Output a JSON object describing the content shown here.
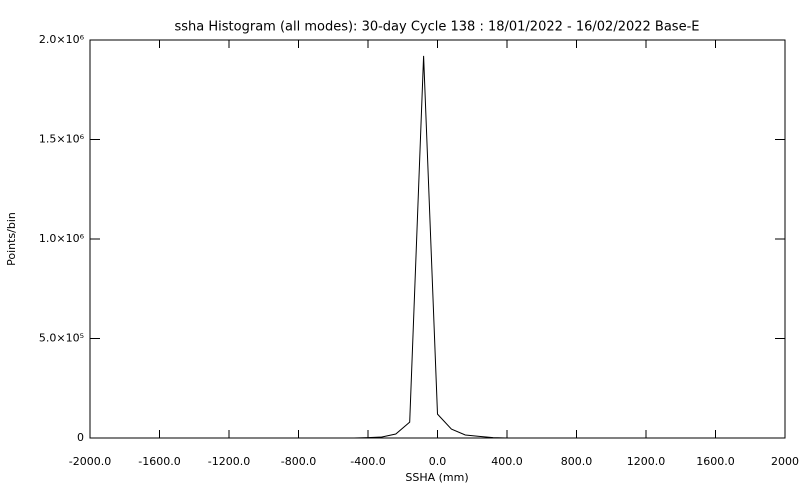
{
  "chart_data": {
    "type": "line",
    "title": "ssha Histogram (all modes): 30-day Cycle 138 : 18/01/2022 - 16/02/2022 Base-E",
    "xlabel": "SSHA (mm)",
    "ylabel": "Points/bin",
    "x": [
      -480,
      -400,
      -320,
      -240,
      -160,
      -80,
      0,
      80,
      160,
      240,
      320,
      400
    ],
    "values": [
      0,
      2000,
      5000,
      20000,
      80000,
      1920000,
      120000,
      45000,
      15000,
      8000,
      2000,
      0
    ],
    "color": "#000000",
    "xlim": [
      -2000,
      2000
    ],
    "xticks": [
      {
        "value": -2000,
        "label": "-2000.0"
      },
      {
        "value": -1600,
        "label": "-1600.0"
      },
      {
        "value": -1200,
        "label": "-1200.0"
      },
      {
        "value": -800,
        "label": "-800.0"
      },
      {
        "value": -400,
        "label": "-400.0"
      },
      {
        "value": 0,
        "label": "0.0"
      },
      {
        "value": 400,
        "label": "400.0"
      },
      {
        "value": 800,
        "label": "800.0"
      },
      {
        "value": 1200,
        "label": "1200.0"
      },
      {
        "value": 1600,
        "label": "1600.0"
      },
      {
        "value": 2000,
        "label": "2000"
      }
    ],
    "ylim": [
      0,
      2000000
    ],
    "yticks": [
      0,
      {
        "value": 500000,
        "label": "5.0×10⁵"
      },
      {
        "value": 1000000,
        "label": "1.0×10⁶"
      },
      {
        "value": 1500000,
        "label": "1.5×10⁶"
      },
      {
        "value": 2000000,
        "label": "2.0×10⁶"
      }
    ],
    "grid": false
  }
}
